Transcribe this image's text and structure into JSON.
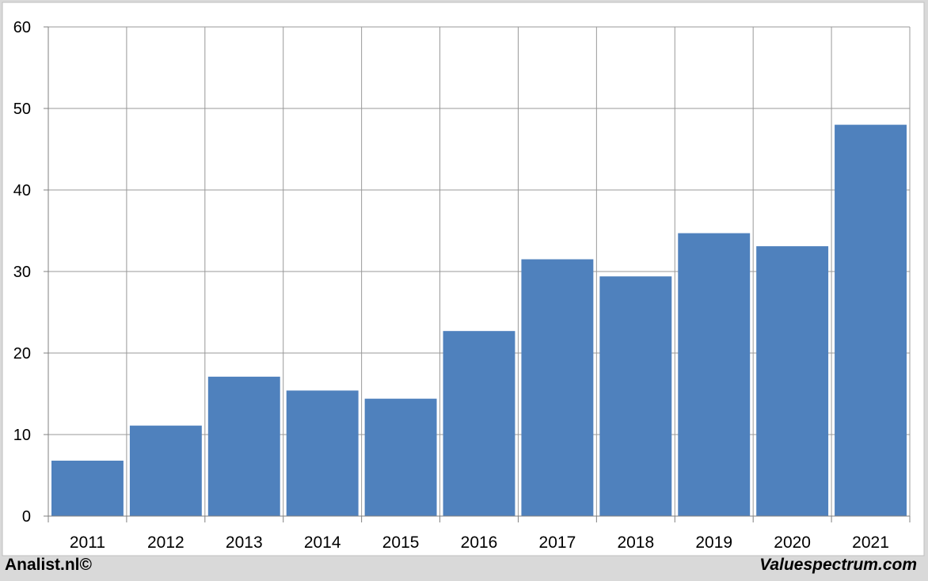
{
  "chart_data": {
    "type": "bar",
    "categories": [
      "2011",
      "2012",
      "2013",
      "2014",
      "2015",
      "2016",
      "2017",
      "2018",
      "2019",
      "2020",
      "2021"
    ],
    "values": [
      6.8,
      11.1,
      17.1,
      15.4,
      14.4,
      22.7,
      31.5,
      29.4,
      34.7,
      33.1,
      48.0
    ],
    "ylim": [
      0,
      60
    ],
    "yticks": [
      0,
      10,
      20,
      30,
      40,
      50,
      60
    ],
    "grid": true,
    "bar_color": "#4f81bd",
    "title": "",
    "xlabel": "",
    "ylabel": ""
  },
  "footer": {
    "left": "Analist.nl©",
    "right": "Valuespectrum.com"
  },
  "colors": {
    "background": "#d9d9d9",
    "plot_background": "#ffffff",
    "grid": "#999999"
  }
}
